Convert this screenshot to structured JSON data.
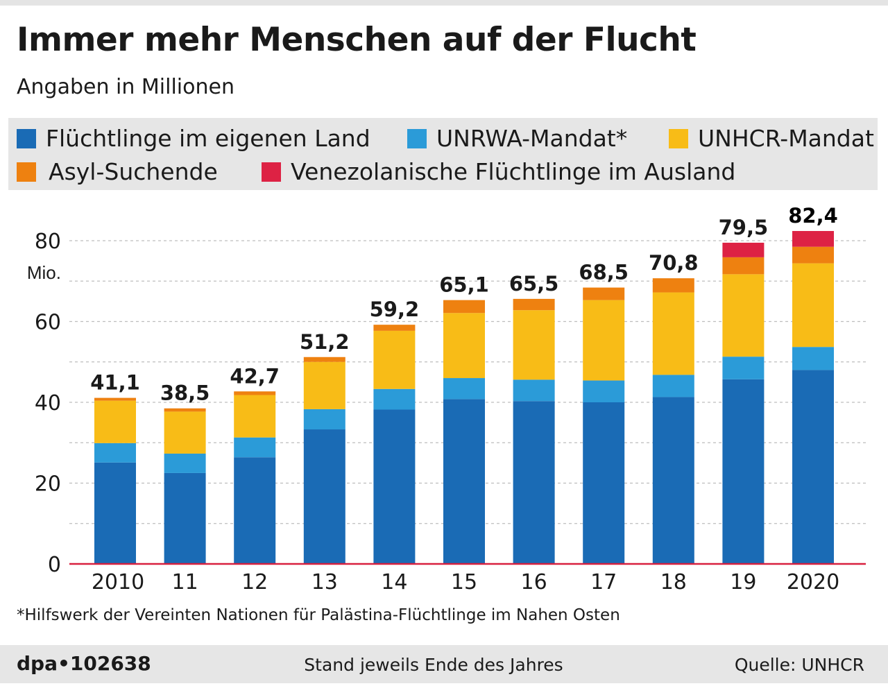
{
  "chart_data": {
    "type": "bar",
    "stacked": true,
    "title": "Immer mehr Menschen auf der Flucht",
    "subtitle": "Angaben in Millionen",
    "ylabel": "Mio.",
    "ylim": [
      0,
      80
    ],
    "yticks": [
      0,
      20,
      40,
      60,
      80
    ],
    "categories": [
      "2010",
      "11",
      "12",
      "13",
      "14",
      "15",
      "16",
      "17",
      "18",
      "19",
      "2020"
    ],
    "totals": [
      41.1,
      38.5,
      42.7,
      51.2,
      59.2,
      65.1,
      65.5,
      68.5,
      70.8,
      79.5,
      82.4
    ],
    "total_labels": [
      "41,1",
      "38,5",
      "42,7",
      "51,2",
      "59,2",
      "65,1",
      "65,5",
      "68,5",
      "70,8",
      "79,5",
      "82,4"
    ],
    "series": [
      {
        "name": "Flüchtlinge im eigenen Land",
        "color": "#1a6bb5",
        "values": [
          25.1,
          22.5,
          26.4,
          33.3,
          38.2,
          40.8,
          40.3,
          40.0,
          41.3,
          45.7,
          48.0
        ]
      },
      {
        "name": "UNRWA-Mandat*",
        "color": "#2b9bd8",
        "values": [
          4.8,
          4.8,
          4.9,
          5.0,
          5.1,
          5.2,
          5.3,
          5.4,
          5.5,
          5.6,
          5.7
        ]
      },
      {
        "name": "UNHCR-Mandat",
        "color": "#f8bc17",
        "values": [
          10.5,
          10.4,
          10.5,
          11.7,
          14.4,
          16.1,
          17.2,
          19.9,
          20.4,
          20.4,
          20.7
        ]
      },
      {
        "name": "Asyl-Suchende",
        "color": "#ee8110",
        "values": [
          0.7,
          0.8,
          0.9,
          1.2,
          1.5,
          3.2,
          2.8,
          3.1,
          3.5,
          4.2,
          4.1
        ]
      },
      {
        "name": "Venezolanische Flüchtlinge im Ausland",
        "color": "#dd2244",
        "values": [
          0,
          0,
          0,
          0,
          0,
          0,
          0,
          0,
          0,
          3.6,
          3.9
        ]
      }
    ]
  },
  "legend": [
    "Flüchtlinge im eigenen Land",
    "UNRWA-Mandat*",
    "UNHCR-Mandat",
    "Asyl-Suchende",
    "Venezolanische Flüchtlinge im Ausland"
  ],
  "footnote": "*Hilfswerk der Vereinten Nationen für Palästina-Flüchtlinge im Nahen Osten",
  "footer": {
    "id": "dpa•102638",
    "stand": "Stand jeweils Ende des Jahres",
    "source": "Quelle: UNHCR"
  },
  "colors": {
    "baseline": "#d8203f",
    "grid": "#bdbdbd",
    "background": "#e6e6e6"
  }
}
